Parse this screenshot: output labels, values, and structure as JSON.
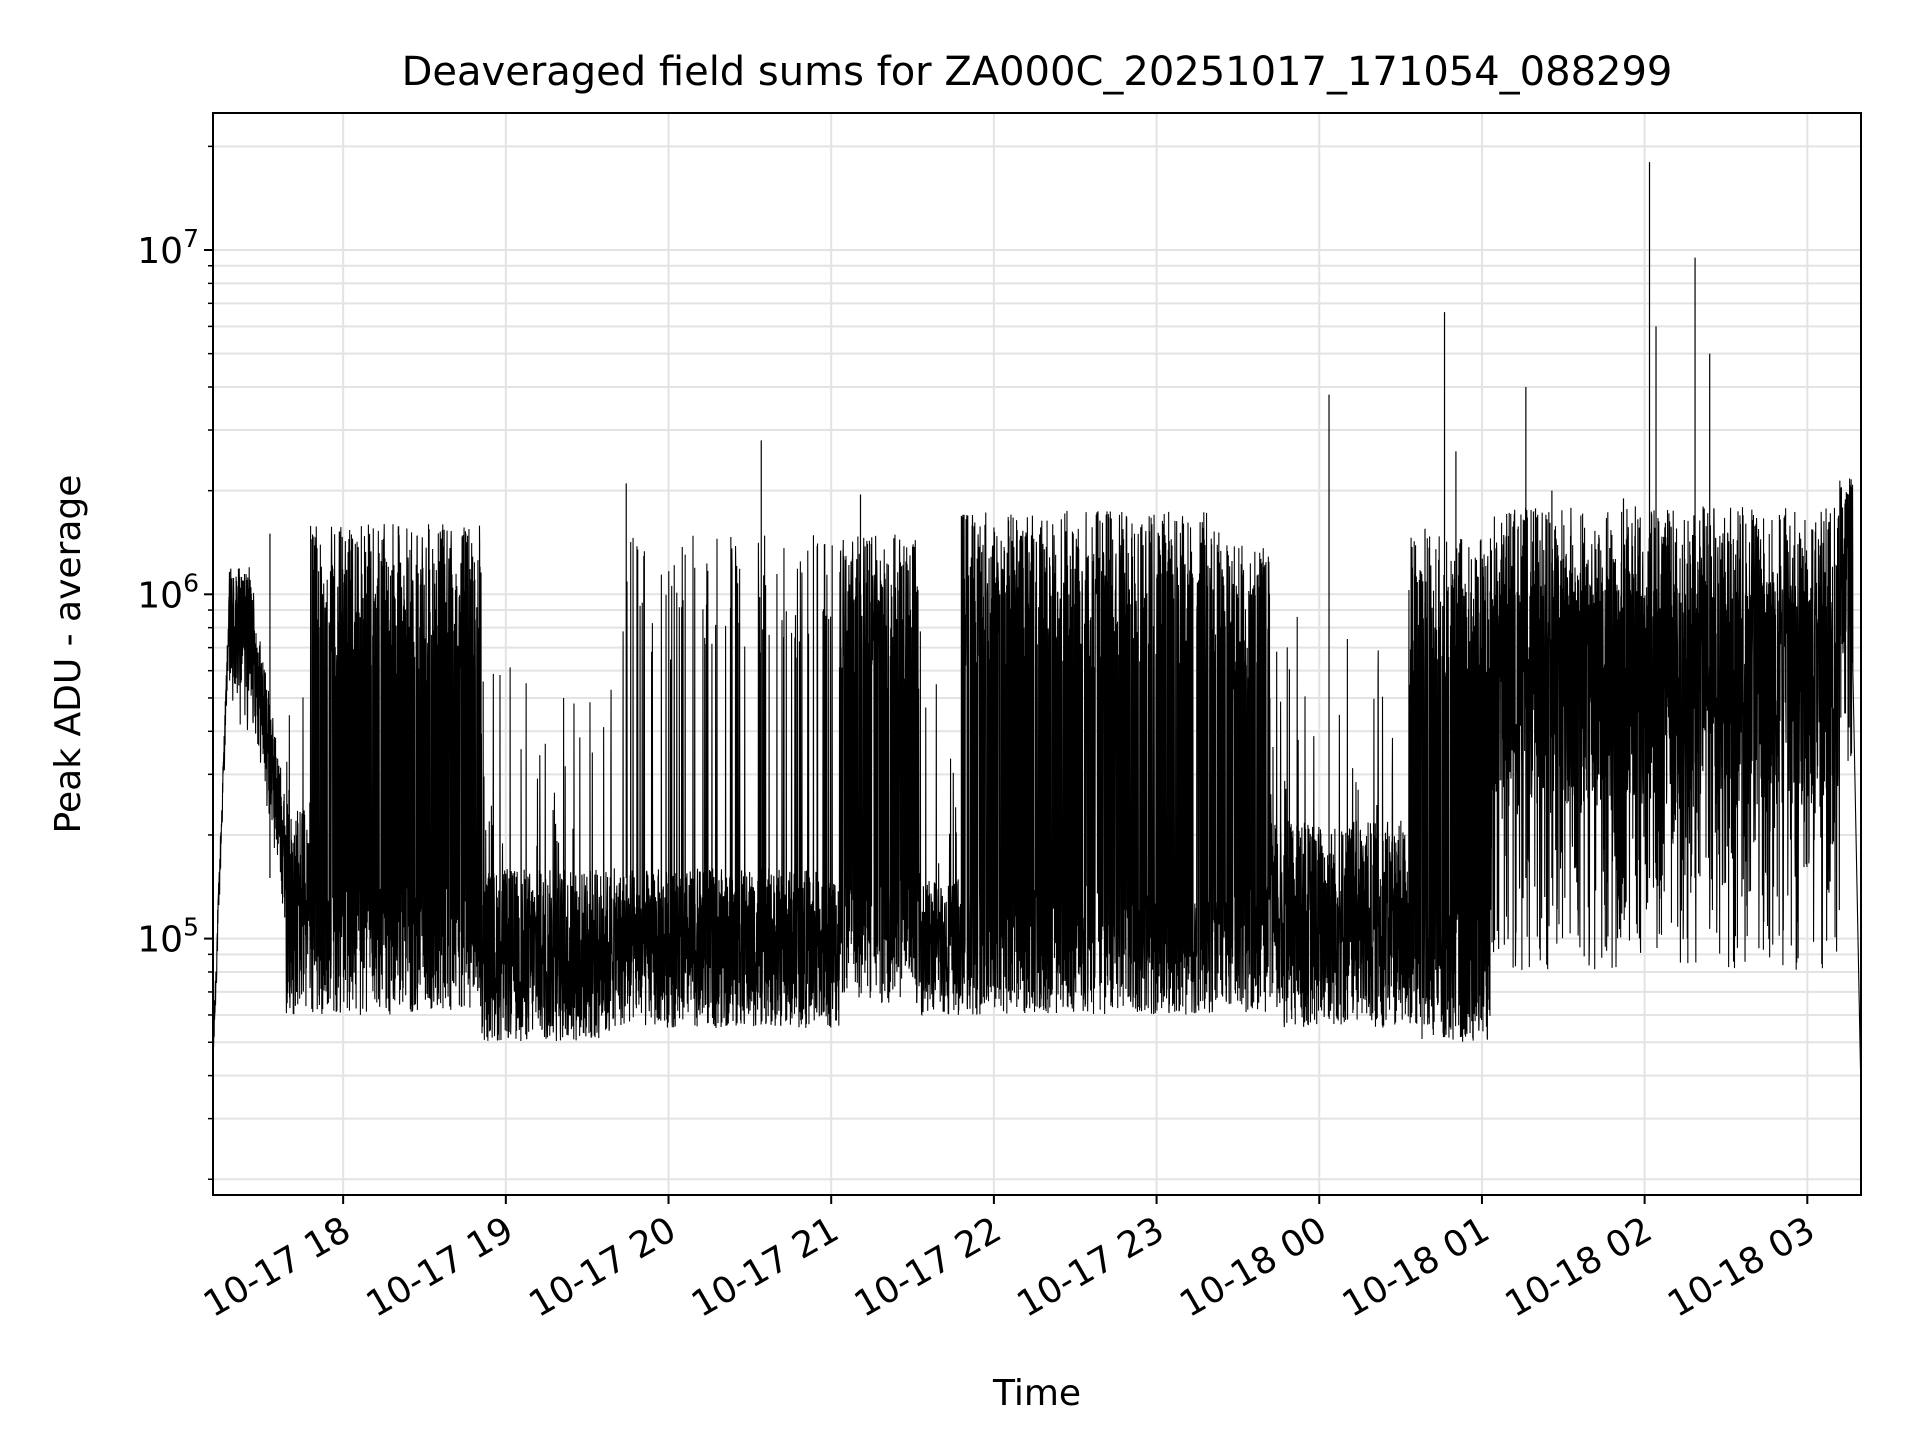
{
  "chart_data": {
    "type": "line",
    "title": "Deaveraged field sums for ZA000C_20251017_171054_088299",
    "xlabel": "Time",
    "ylabel": "Peak ADU - average",
    "yscale": "log",
    "ylim": [
      18000,
      25000000
    ],
    "xlim_hours": [
      17.2,
      27.33
    ],
    "grid": true,
    "line_color": "#000000",
    "grid_color": "#e3e3e3",
    "x_ticks": [
      {
        "hour": 18,
        "label": "10-17 18"
      },
      {
        "hour": 19,
        "label": "10-17 19"
      },
      {
        "hour": 20,
        "label": "10-17 20"
      },
      {
        "hour": 21,
        "label": "10-17 21"
      },
      {
        "hour": 22,
        "label": "10-17 22"
      },
      {
        "hour": 23,
        "label": "10-17 23"
      },
      {
        "hour": 24,
        "label": "10-18 00"
      },
      {
        "hour": 25,
        "label": "10-18 01"
      },
      {
        "hour": 26,
        "label": "10-18 02"
      },
      {
        "hour": 27,
        "label": "10-18 03"
      }
    ],
    "y_ticks": [
      {
        "value": 100000,
        "base": "10",
        "exp": "5"
      },
      {
        "value": 1000000,
        "base": "10",
        "exp": "6"
      },
      {
        "value": 10000000,
        "base": "10",
        "exp": "7"
      }
    ],
    "series": [
      {
        "name": "Peak ADU - average",
        "description": "Dense noisy time series, approximated by segment envelopes (hours, ADU) plus isolated spikes",
        "segments": [
          {
            "start": 17.2,
            "end": 17.3,
            "low": 45000,
            "high": 900000,
            "mode": "rise"
          },
          {
            "start": 17.3,
            "end": 17.45,
            "low": 400000,
            "high": 1200000,
            "mode": "plateau"
          },
          {
            "start": 17.45,
            "end": 17.65,
            "low": 180000,
            "high": 700000,
            "mode": "decay"
          },
          {
            "start": 17.65,
            "end": 17.8,
            "low": 60000,
            "high": 250000,
            "mode": "noise"
          },
          {
            "start": 17.8,
            "end": 18.85,
            "low": 60000,
            "high": 1600000,
            "mode": "burst"
          },
          {
            "start": 18.85,
            "end": 19.65,
            "low": 50000,
            "high": 160000,
            "mode": "noise"
          },
          {
            "start": 19.65,
            "end": 21.05,
            "low": 55000,
            "high": 160000,
            "mode": "sparse"
          },
          {
            "start": 21.05,
            "end": 21.55,
            "low": 65000,
            "high": 1500000,
            "mode": "burst"
          },
          {
            "start": 21.55,
            "end": 21.8,
            "low": 60000,
            "high": 150000,
            "mode": "noise"
          },
          {
            "start": 21.8,
            "end": 23.4,
            "low": 60000,
            "high": 1750000,
            "mode": "burst"
          },
          {
            "start": 23.4,
            "end": 23.7,
            "low": 60000,
            "high": 1400000,
            "mode": "burst"
          },
          {
            "start": 23.7,
            "end": 24.55,
            "low": 55000,
            "high": 220000,
            "mode": "noise"
          },
          {
            "start": 24.55,
            "end": 25.05,
            "low": 50000,
            "high": 1500000,
            "mode": "burst"
          },
          {
            "start": 25.05,
            "end": 27.2,
            "low": 80000,
            "high": 1800000,
            "mode": "dense"
          },
          {
            "start": 27.2,
            "end": 27.28,
            "low": 300000,
            "high": 2200000,
            "mode": "plateau"
          },
          {
            "start": 27.28,
            "end": 27.33,
            "low": 35000,
            "high": 600000,
            "mode": "drop"
          }
        ],
        "spikes": [
          {
            "hour": 17.55,
            "value": 1500000
          },
          {
            "hour": 19.74,
            "value": 2100000
          },
          {
            "hour": 20.57,
            "value": 2800000
          },
          {
            "hour": 21.18,
            "value": 1950000
          },
          {
            "hour": 24.06,
            "value": 3800000
          },
          {
            "hour": 24.65,
            "value": 1550000
          },
          {
            "hour": 24.77,
            "value": 6600000
          },
          {
            "hour": 24.84,
            "value": 2600000
          },
          {
            "hour": 25.27,
            "value": 4000000
          },
          {
            "hour": 25.43,
            "value": 2000000
          },
          {
            "hour": 25.87,
            "value": 1900000
          },
          {
            "hour": 26.03,
            "value": 18000000
          },
          {
            "hour": 26.07,
            "value": 6000000
          },
          {
            "hour": 26.31,
            "value": 9500000
          },
          {
            "hour": 26.4,
            "value": 5000000
          }
        ]
      }
    ]
  }
}
